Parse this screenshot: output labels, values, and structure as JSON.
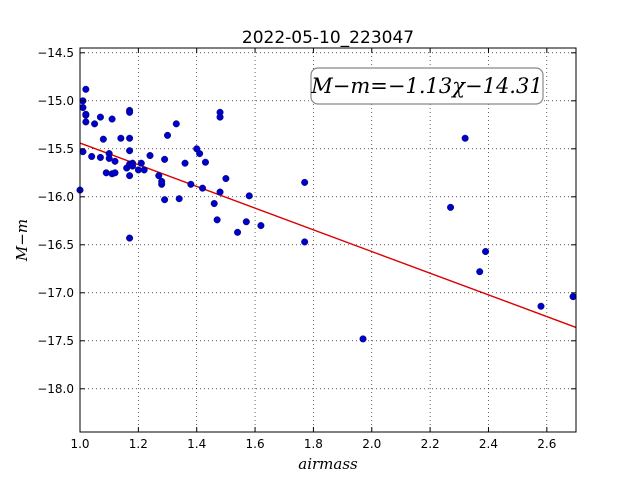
{
  "chart_data": {
    "type": "scatter",
    "title": "2022-05-10_223047",
    "xlabel": "airmass",
    "ylabel": "M−m",
    "xlim": [
      1.0,
      2.7
    ],
    "ylim": [
      -14.45,
      -18.45
    ],
    "y_inverted": true,
    "x_ticks": [
      1.0,
      1.2,
      1.4,
      1.6,
      1.8,
      2.0,
      2.2,
      2.4,
      2.6
    ],
    "x_tick_labels": [
      "1.0",
      "1.2",
      "1.4",
      "1.6",
      "1.8",
      "2.0",
      "2.2",
      "2.4",
      "2.6"
    ],
    "y_ticks": [
      -14.5,
      -15.0,
      -15.5,
      -16.0,
      -16.5,
      -17.0,
      -17.5,
      -18.0
    ],
    "y_tick_labels": [
      "−14.5",
      "−15.0",
      "−15.5",
      "−16.0",
      "−16.5",
      "−17.0",
      "−17.5",
      "−18.0"
    ],
    "grid": true,
    "grid_style": "dotted",
    "annotation": "M−m=−1.13χ−14.31",
    "annotation_placement": "top-right",
    "colors": {
      "points": "#0000cc",
      "fit_line": "#dd0000"
    },
    "fit": {
      "slope": -1.13,
      "intercept": -14.31
    },
    "series": [
      {
        "points": [
          [
            1.0,
            -15.93
          ],
          [
            1.01,
            -15.0
          ],
          [
            1.01,
            -15.07
          ],
          [
            1.02,
            -15.15
          ],
          [
            1.02,
            -15.22
          ],
          [
            1.02,
            -15.14
          ],
          [
            1.02,
            -14.88
          ],
          [
            1.01,
            -15.53
          ],
          [
            1.04,
            -15.58
          ],
          [
            1.05,
            -15.24
          ],
          [
            1.07,
            -15.17
          ],
          [
            1.07,
            -15.59
          ],
          [
            1.08,
            -15.4
          ],
          [
            1.09,
            -15.75
          ],
          [
            1.1,
            -15.55
          ],
          [
            1.1,
            -15.6
          ],
          [
            1.11,
            -15.19
          ],
          [
            1.11,
            -15.76
          ],
          [
            1.12,
            -15.75
          ],
          [
            1.12,
            -15.63
          ],
          [
            1.14,
            -15.39
          ],
          [
            1.16,
            -15.7
          ],
          [
            1.17,
            -15.52
          ],
          [
            1.17,
            -15.39
          ],
          [
            1.17,
            -15.66
          ],
          [
            1.17,
            -15.78
          ],
          [
            1.17,
            -15.1
          ],
          [
            1.17,
            -15.12
          ],
          [
            1.17,
            -16.43
          ],
          [
            1.18,
            -15.65
          ],
          [
            1.18,
            -15.68
          ],
          [
            1.2,
            -15.72
          ],
          [
            1.21,
            -15.65
          ],
          [
            1.22,
            -15.72
          ],
          [
            1.24,
            -15.57
          ],
          [
            1.27,
            -15.78
          ],
          [
            1.28,
            -15.87
          ],
          [
            1.28,
            -15.84
          ],
          [
            1.29,
            -15.61
          ],
          [
            1.29,
            -16.03
          ],
          [
            1.3,
            -15.36
          ],
          [
            1.33,
            -15.24
          ],
          [
            1.34,
            -16.02
          ],
          [
            1.36,
            -15.65
          ],
          [
            1.38,
            -15.87
          ],
          [
            1.4,
            -15.5
          ],
          [
            1.41,
            -15.55
          ],
          [
            1.42,
            -15.91
          ],
          [
            1.43,
            -15.64
          ],
          [
            1.46,
            -16.07
          ],
          [
            1.47,
            -16.24
          ],
          [
            1.48,
            -15.12
          ],
          [
            1.48,
            -15.17
          ],
          [
            1.48,
            -15.95
          ],
          [
            1.5,
            -15.81
          ],
          [
            1.54,
            -16.37
          ],
          [
            1.57,
            -16.26
          ],
          [
            1.58,
            -15.99
          ],
          [
            1.62,
            -16.3
          ],
          [
            1.77,
            -15.85
          ],
          [
            1.77,
            -16.47
          ],
          [
            1.97,
            -17.48
          ],
          [
            2.27,
            -16.11
          ],
          [
            2.32,
            -15.39
          ],
          [
            2.37,
            -16.78
          ],
          [
            2.39,
            -16.57
          ],
          [
            2.58,
            -17.14
          ],
          [
            2.69,
            -17.04
          ]
        ]
      }
    ]
  }
}
